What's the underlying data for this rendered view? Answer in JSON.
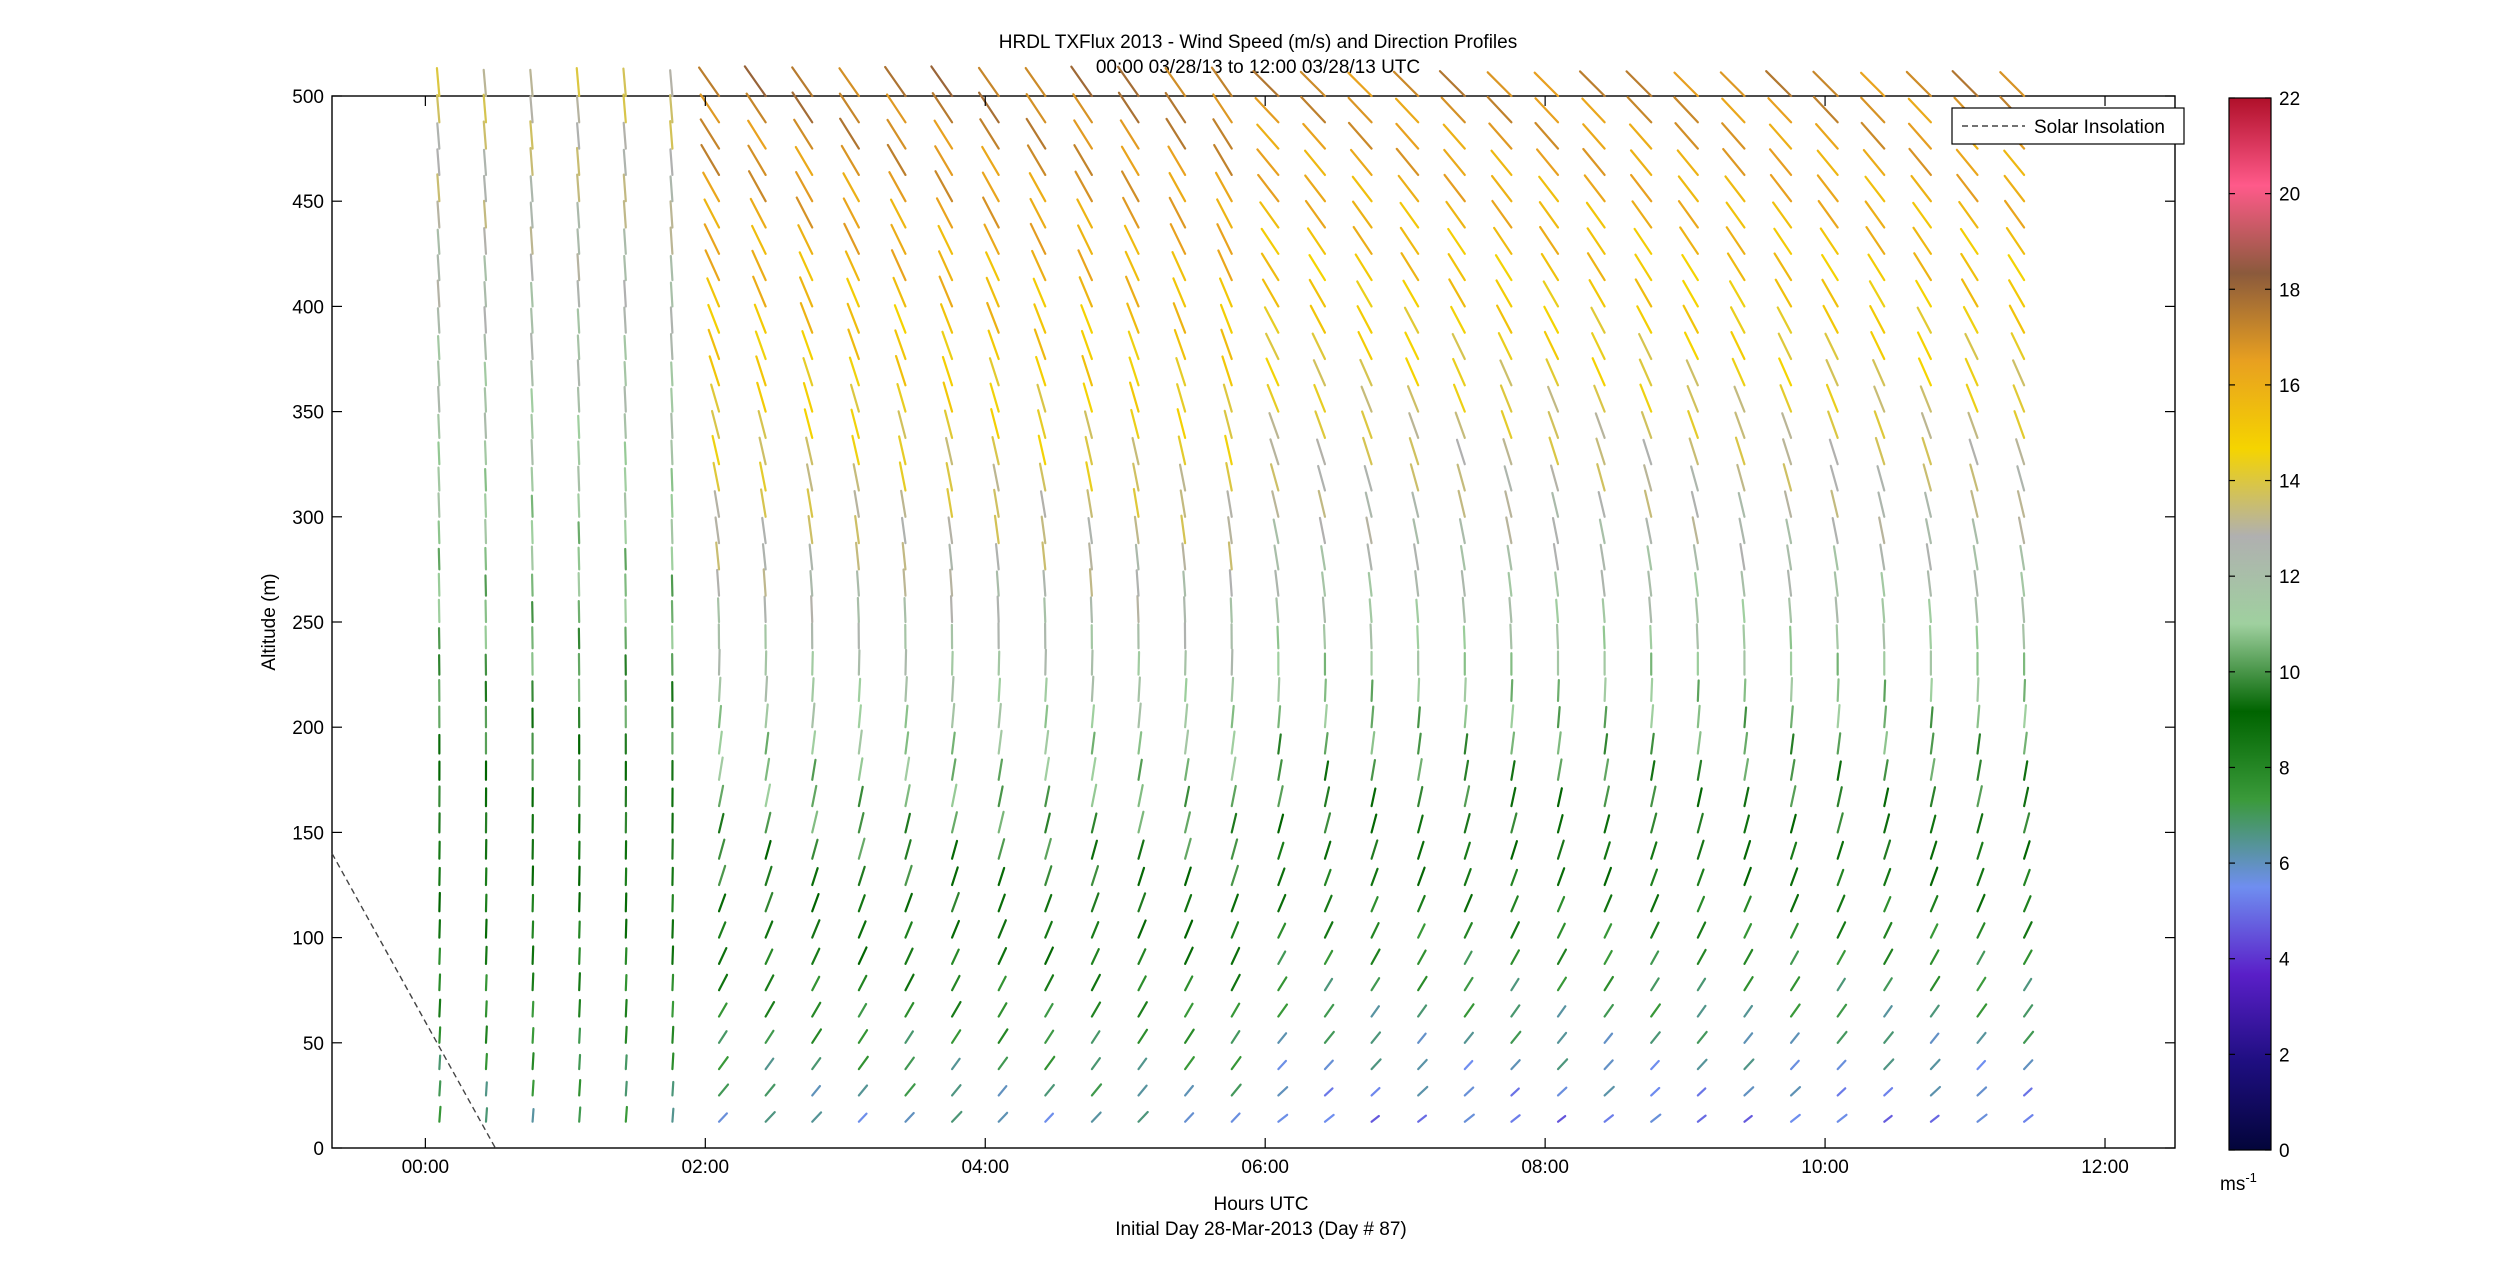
{
  "chart_data": {
    "type": "quiver",
    "title": "HRDL TXFlux 2013 - Wind Speed (m/s) and Direction Profiles",
    "subtitle": "00:00 03/28/13 to 12:00 03/28/13  UTC",
    "xlabel": "Hours UTC",
    "xlabel2": "Initial Day 28-Mar-2013 (Day # 87)",
    "ylabel": "Altitude (m)",
    "xlim": [
      -0.667,
      12.5
    ],
    "ylim": [
      0,
      500
    ],
    "x_ticks": [
      {
        "value": 0,
        "label": "00:00"
      },
      {
        "value": 2,
        "label": "02:00"
      },
      {
        "value": 4,
        "label": "04:00"
      },
      {
        "value": 6,
        "label": "06:00"
      },
      {
        "value": 8,
        "label": "08:00"
      },
      {
        "value": 10,
        "label": "10:00"
      },
      {
        "value": 12,
        "label": "12:00"
      }
    ],
    "y_ticks": [
      0,
      50,
      100,
      150,
      200,
      250,
      300,
      350,
      400,
      450,
      500
    ],
    "colorbar": {
      "min": 0,
      "max": 22,
      "ticks": [
        0,
        2,
        4,
        6,
        8,
        10,
        12,
        14,
        16,
        18,
        20,
        22
      ],
      "unit": "ms",
      "unit_exp": "-1",
      "colors": [
        "#03053a",
        "#1e0e80",
        "#5a1fc8",
        "#6f8ef0",
        "#3a9a3a",
        "#006400",
        "#9fd09f",
        "#b0b0b0",
        "#f5d400",
        "#e8a020",
        "#8b5a3c",
        "#ff5a8a",
        "#b0102a"
      ]
    },
    "legend": {
      "position": "top-right",
      "entries": [
        {
          "label": "Solar Insolation",
          "style": "dashed"
        }
      ]
    },
    "solar_insolation": {
      "x": [
        -0.667,
        0.5
      ],
      "y": [
        140,
        0
      ]
    },
    "wind_profiles": {
      "time_start": 0.1,
      "time_step": 0.333,
      "count": 35,
      "altitude_step": 12.5,
      "altitude_max": 500,
      "regimes": [
        {
          "until": 2.0,
          "low_speed": 6.5,
          "top_speed": 13.5,
          "low_dir_deg": 175,
          "top_dir_deg": 185
        },
        {
          "until": 6.0,
          "low_speed": 5.5,
          "top_speed": 17.5,
          "low_dir_deg": 130,
          "top_dir_deg": 215
        },
        {
          "until": 12.0,
          "low_speed": 4.5,
          "top_speed": 17.0,
          "low_dir_deg": 120,
          "top_dir_deg": 225
        }
      ]
    }
  }
}
